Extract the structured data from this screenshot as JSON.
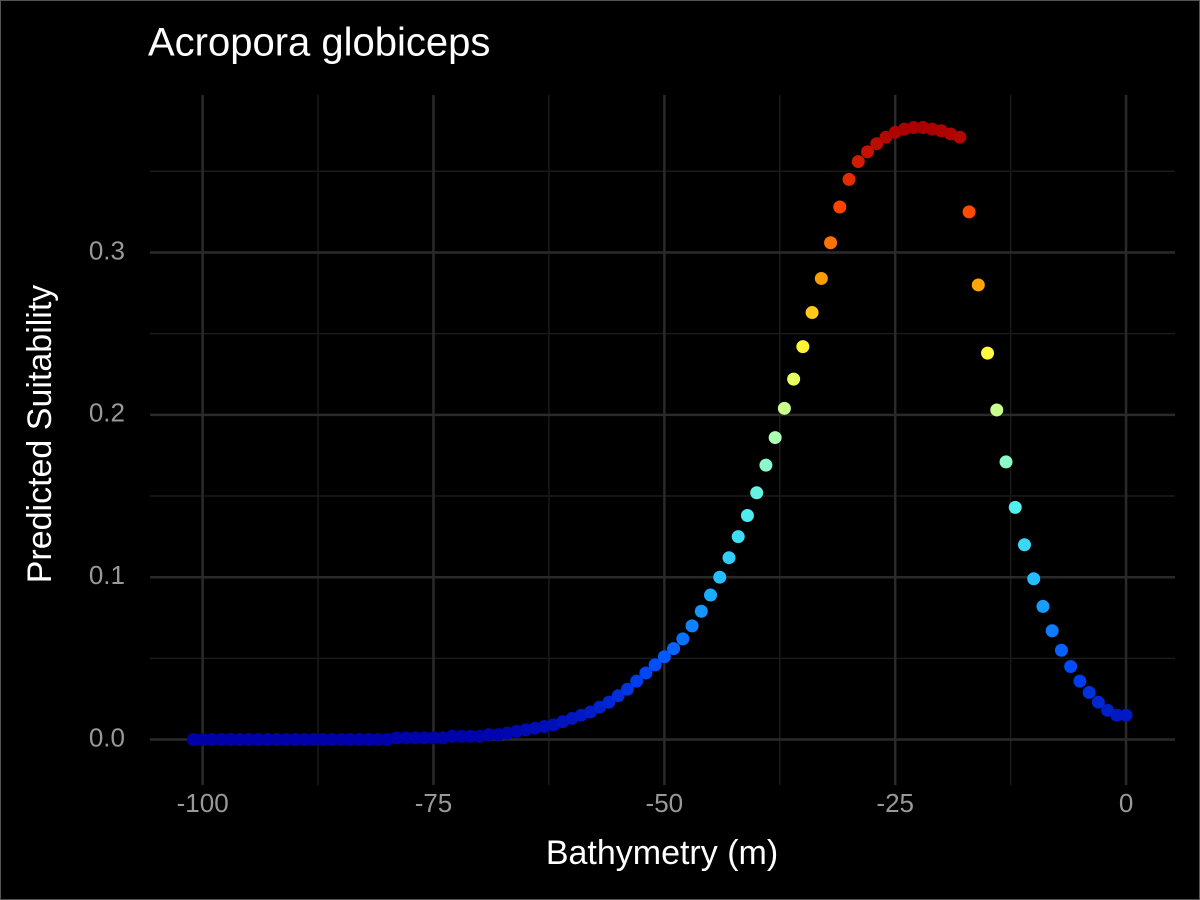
{
  "chart_data": {
    "type": "scatter",
    "title": "Acropora globiceps",
    "x_label": "Bathymetry (m)",
    "y_label": "Predicted Suitability",
    "x": [
      -101,
      -100,
      -99,
      -98,
      -97,
      -96,
      -95,
      -94,
      -93,
      -92,
      -91,
      -90,
      -89,
      -88,
      -87,
      -86,
      -85,
      -84,
      -83,
      -82,
      -81,
      -80,
      -79,
      -78,
      -77,
      -76,
      -75,
      -74,
      -73,
      -72,
      -71,
      -70,
      -69,
      -68,
      -67,
      -66,
      -65,
      -64,
      -63,
      -62,
      -61,
      -60,
      -59,
      -58,
      -57,
      -56,
      -55,
      -54,
      -53,
      -52,
      -51,
      -50,
      -49,
      -48,
      -47,
      -46,
      -45,
      -44,
      -43,
      -42,
      -41,
      -40,
      -39,
      -38,
      -37,
      -36,
      -35,
      -34,
      -33,
      -32,
      -31,
      -30,
      -29,
      -28,
      -27,
      -26,
      -25,
      -24,
      -23,
      -22,
      -21,
      -20,
      -19,
      -18,
      -17,
      -16,
      -15,
      -14,
      -13,
      -12,
      -11,
      -10,
      -9,
      -8,
      -7,
      -6,
      -5,
      -4,
      -3,
      -2,
      -1,
      0
    ],
    "values": [
      0,
      0,
      0,
      0,
      0,
      0,
      0,
      0,
      0,
      0,
      0,
      0,
      0,
      0,
      0,
      0,
      0,
      0,
      0,
      0,
      0,
      0,
      0.001,
      0.001,
      0.001,
      0.001,
      0.001,
      0.001,
      0.002,
      0.002,
      0.002,
      0.002,
      0.003,
      0.003,
      0.004,
      0.005,
      0.006,
      0.007,
      0.008,
      0.009,
      0.011,
      0.013,
      0.015,
      0.017,
      0.02,
      0.023,
      0.027,
      0.031,
      0.036,
      0.041,
      0.046,
      0.051,
      0.056,
      0.062,
      0.07,
      0.079,
      0.089,
      0.1,
      0.112,
      0.125,
      0.138,
      0.152,
      0.169,
      0.186,
      0.204,
      0.222,
      0.242,
      0.263,
      0.284,
      0.306,
      0.328,
      0.345,
      0.356,
      0.362,
      0.367,
      0.371,
      0.374,
      0.376,
      0.377,
      0.377,
      0.376,
      0.375,
      0.373,
      0.371,
      0.325,
      0.28,
      0.238,
      0.203,
      0.171,
      0.143,
      0.12,
      0.099,
      0.082,
      0.067,
      0.055,
      0.045,
      0.036,
      0.029,
      0.023,
      0.018,
      0.015,
      0.015
    ],
    "color_scale": [
      "#0000a8",
      "#0050ff",
      "#20b8ff",
      "#50f0f0",
      "#b0ffb0",
      "#ffff40",
      "#ffa000",
      "#ff4000",
      "#a80000"
    ],
    "xlim": [
      -105.7,
      5.3
    ],
    "ylim": [
      -0.028,
      0.397
    ],
    "xticks": [
      -100,
      -75,
      -50,
      -25,
      0
    ],
    "yticks": [
      {
        "value": 0,
        "label": "0.0"
      },
      0.1,
      0.2,
      0.3
    ],
    "minor_xticks": [
      -87.5,
      -62.5,
      -37.5,
      -12.5
    ],
    "minor_yticks": [
      0.05,
      0.15,
      0.25,
      0.35
    ],
    "grid": true
  }
}
